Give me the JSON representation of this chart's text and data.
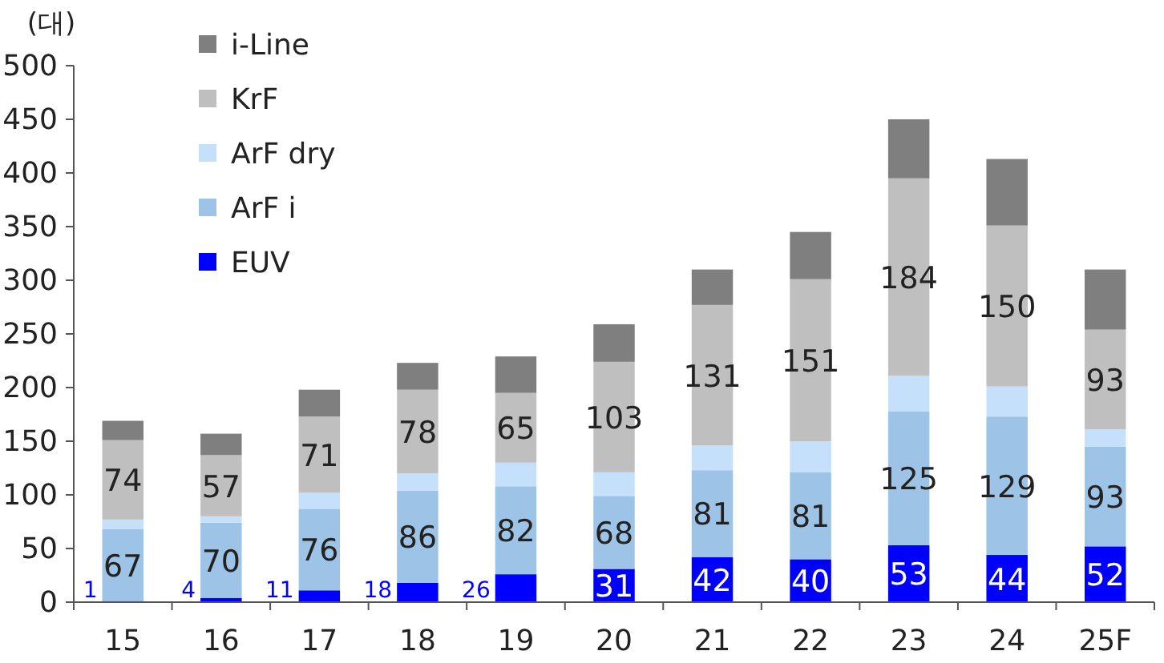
{
  "chart_data": {
    "type": "bar",
    "stacked": true,
    "ylabel": "(대)",
    "categories": [
      "15",
      "16",
      "17",
      "18",
      "19",
      "20",
      "21",
      "22",
      "23",
      "24",
      "25F"
    ],
    "ylim": [
      0,
      500
    ],
    "yticks": [
      0,
      50,
      100,
      150,
      200,
      250,
      300,
      350,
      400,
      450,
      500
    ],
    "grid": false,
    "legend": "top left",
    "series": [
      {
        "name": "EUV",
        "color": "#0000ff",
        "values": [
          1,
          4,
          11,
          18,
          26,
          31,
          42,
          40,
          53,
          44,
          52
        ],
        "value_labels": [
          "1",
          "4",
          "11",
          "18",
          "26",
          "31",
          "42",
          "40",
          "53",
          "44",
          "52"
        ]
      },
      {
        "name": "ArF i",
        "color": "#9dc3e6",
        "values": [
          67,
          70,
          76,
          86,
          82,
          68,
          81,
          81,
          125,
          129,
          93
        ],
        "value_labels": [
          "67",
          "70",
          "76",
          "86",
          "82",
          "68",
          "81",
          "81",
          "125",
          "129",
          "93"
        ]
      },
      {
        "name": "ArF dry",
        "color": "#c5e0fa",
        "values": [
          9,
          6,
          15,
          16,
          22,
          22,
          23,
          29,
          33,
          28,
          16
        ]
      },
      {
        "name": "KrF",
        "color": "#bfbfbf",
        "values": [
          74,
          57,
          71,
          78,
          65,
          103,
          131,
          151,
          184,
          150,
          93
        ],
        "value_labels": [
          "74",
          "57",
          "71",
          "78",
          "65",
          "103",
          "131",
          "151",
          "184",
          "150",
          "93"
        ]
      },
      {
        "name": "i-Line",
        "color": "#7f7f7f",
        "values": [
          18,
          20,
          25,
          25,
          34,
          35,
          33,
          44,
          55,
          62,
          56
        ]
      }
    ]
  }
}
